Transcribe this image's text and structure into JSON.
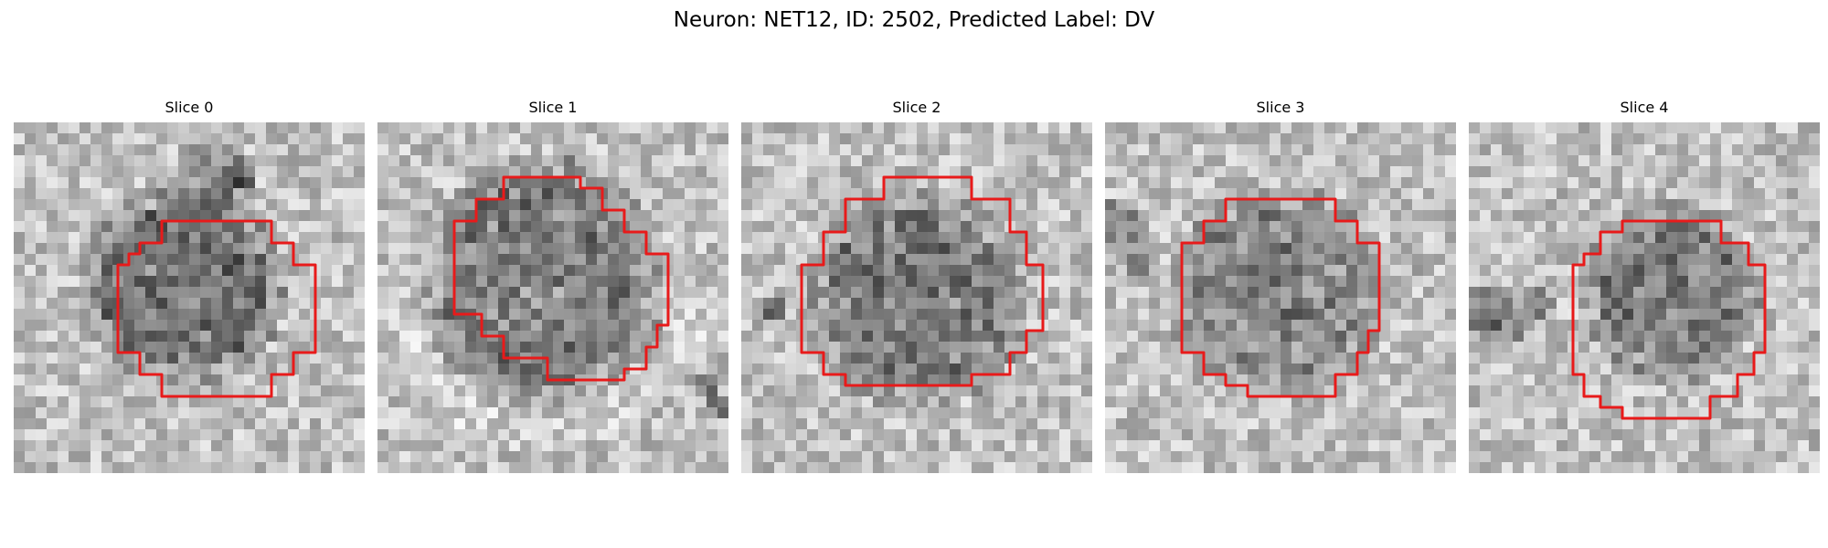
{
  "figure": {
    "title": "Neuron: NET12, ID: 2502, Predicted Label: DV",
    "contour_color": "#e81a1a"
  },
  "slices": [
    {
      "title": "Slice 0"
    },
    {
      "title": "Slice 1"
    },
    {
      "title": "Slice 2"
    },
    {
      "title": "Slice 3"
    },
    {
      "title": "Slice 4"
    }
  ]
}
